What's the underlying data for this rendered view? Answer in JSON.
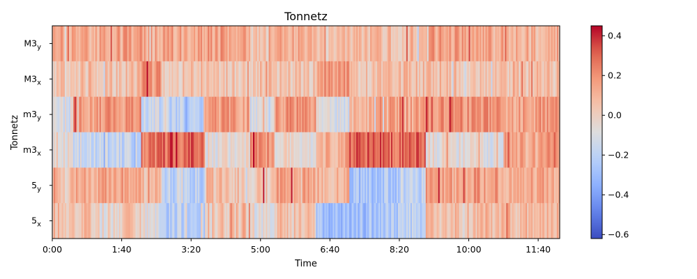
{
  "chart_data": {
    "type": "heatmap",
    "title": "Tonnetz",
    "xlabel": "Time",
    "ylabel": "Tonnetz",
    "x_ticks": [
      "0:00",
      "1:40",
      "3:20",
      "5:00",
      "6:40",
      "8:20",
      "10:00",
      "11:40"
    ],
    "x_tick_seconds": [
      0,
      100,
      200,
      300,
      400,
      500,
      600,
      700
    ],
    "xlim_seconds": [
      0,
      731
    ],
    "rows": [
      {
        "base": "M3",
        "sub": "y"
      },
      {
        "base": "M3",
        "sub": "x"
      },
      {
        "base": "m3",
        "sub": "y"
      },
      {
        "base": "m3",
        "sub": "x"
      },
      {
        "base": "5",
        "sub": "y"
      },
      {
        "base": "5",
        "sub": "x"
      }
    ],
    "colorbar": {
      "colormap": "coolwarm",
      "vmin": -0.62,
      "vmax": 0.45,
      "ticks": [
        "0.4",
        "0.2",
        "0.0",
        "−0.2",
        "−0.4",
        "−0.6"
      ],
      "tick_values": [
        0.4,
        0.2,
        0.0,
        -0.2,
        -0.4,
        -0.6
      ]
    },
    "segments": [
      {
        "start": 0,
        "end": 30,
        "values": [
          0.14,
          0.03,
          -0.09,
          -0.03,
          0.04,
          0.06
        ]
      },
      {
        "start": 30,
        "end": 60,
        "values": [
          0.13,
          0.05,
          0.15,
          -0.13,
          0.12,
          0.06
        ]
      },
      {
        "start": 60,
        "end": 100,
        "values": [
          0.13,
          0.05,
          0.18,
          -0.17,
          0.15,
          -0.04
        ]
      },
      {
        "start": 100,
        "end": 128,
        "values": [
          0.15,
          0.05,
          0.17,
          -0.16,
          0.15,
          0.04
        ]
      },
      {
        "start": 128,
        "end": 158,
        "values": [
          0.12,
          0.18,
          -0.14,
          0.25,
          0.08,
          -0.09
        ]
      },
      {
        "start": 158,
        "end": 220,
        "values": [
          0.14,
          0.04,
          -0.18,
          0.3,
          -0.2,
          -0.22
        ]
      },
      {
        "start": 220,
        "end": 285,
        "values": [
          0.15,
          0.04,
          0.16,
          -0.07,
          0.06,
          0.05
        ]
      },
      {
        "start": 285,
        "end": 320,
        "values": [
          0.04,
          0.06,
          -0.12,
          0.2,
          0.03,
          -0.07
        ]
      },
      {
        "start": 320,
        "end": 380,
        "values": [
          0.12,
          0.04,
          0.18,
          -0.05,
          0.14,
          0.05
        ]
      },
      {
        "start": 380,
        "end": 428,
        "values": [
          0.05,
          0.18,
          -0.12,
          0.12,
          0.1,
          -0.28
        ]
      },
      {
        "start": 428,
        "end": 470,
        "values": [
          0.06,
          0.04,
          0.1,
          0.32,
          -0.25,
          -0.28
        ]
      },
      {
        "start": 470,
        "end": 500,
        "values": [
          0.08,
          0.05,
          0.16,
          0.28,
          -0.24,
          -0.24
        ]
      },
      {
        "start": 500,
        "end": 538,
        "values": [
          0.07,
          0.05,
          0.14,
          0.3,
          -0.2,
          -0.22
        ]
      },
      {
        "start": 538,
        "end": 600,
        "values": [
          0.16,
          0.05,
          0.2,
          -0.05,
          0.13,
          0.06
        ]
      },
      {
        "start": 600,
        "end": 650,
        "values": [
          0.12,
          0.06,
          0.18,
          -0.08,
          0.16,
          0.07
        ]
      },
      {
        "start": 650,
        "end": 700,
        "values": [
          0.1,
          0.05,
          0.15,
          0.12,
          0.14,
          0.08
        ]
      },
      {
        "start": 700,
        "end": 731,
        "values": [
          0.12,
          0.06,
          0.17,
          0.25,
          0.12,
          0.08
        ]
      }
    ]
  }
}
